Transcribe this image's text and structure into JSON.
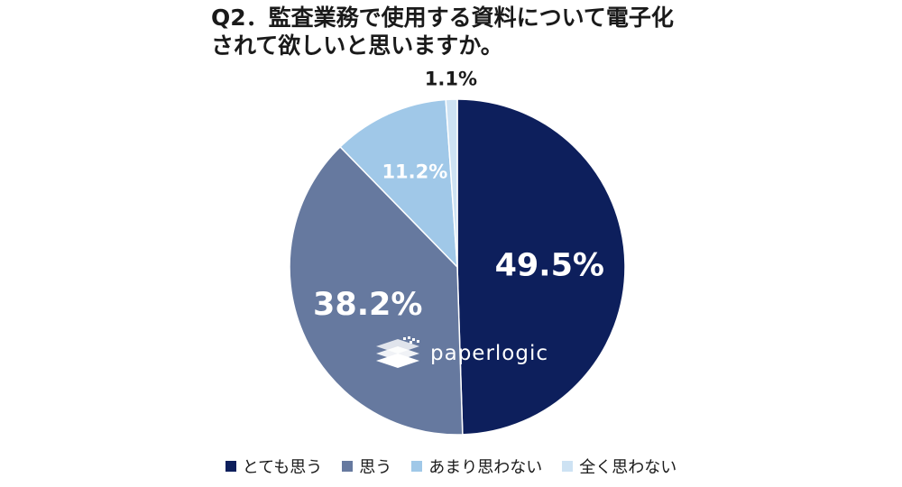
{
  "title": {
    "line1": "Q2．監査業務で使用する資料について電子化",
    "line2": "されて欲しいと思いますか。"
  },
  "chart_data": {
    "type": "pie",
    "unit": "%",
    "slices": [
      {
        "name": "とても思う",
        "value": 49.5,
        "label": "49.5%",
        "color": "#0d1f5c"
      },
      {
        "name": "思う",
        "value": 38.2,
        "label": "38.2%",
        "color": "#66799f"
      },
      {
        "name": "あまり思わない",
        "value": 11.2,
        "label": "11.2%",
        "color": "#a0c8e8"
      },
      {
        "name": "全く思わない",
        "value": 1.1,
        "label": "1.1%",
        "color": "#cde2f3"
      }
    ],
    "legend_position": "bottom"
  },
  "logo": {
    "text": "paperlogic"
  }
}
